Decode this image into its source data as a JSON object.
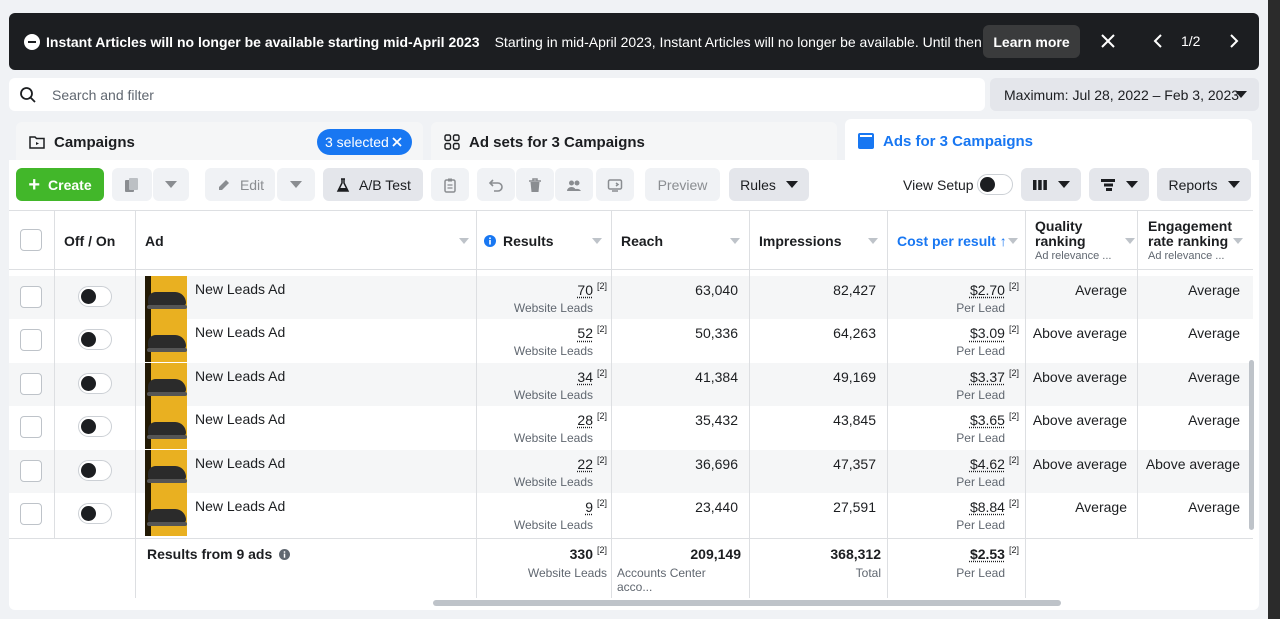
{
  "banner": {
    "title": "Instant Articles will no longer be available starting mid-April 2023",
    "text": "Starting in mid-April 2023, Instant Articles will no longer be available. Until then, you ca...",
    "learn_more": "Learn more",
    "page": "1/2"
  },
  "search": {
    "placeholder": "Search and filter"
  },
  "date_range": "Maximum: Jul 28, 2022 – Feb 3, 2023",
  "tabs": {
    "campaigns": "Campaigns",
    "selected": "3 selected",
    "adsets": "Ad sets for 3 Campaigns",
    "ads": "Ads for 3 Campaigns"
  },
  "toolbar": {
    "create": "Create",
    "edit": "Edit",
    "ab_test": "A/B Test",
    "preview": "Preview",
    "rules": "Rules",
    "view_setup": "View Setup",
    "reports": "Reports"
  },
  "columns": {
    "off_on": "Off / On",
    "ad": "Ad",
    "results": "Results",
    "reach": "Reach",
    "impressions": "Impressions",
    "cost_per_result": "Cost per result ↑",
    "quality_title": "Quality ranking",
    "quality_sub": "Ad relevance ...",
    "engagement_title": "Engagement rate ranking",
    "engagement_sub": "Ad relevance ..."
  },
  "rows": [
    {
      "name": "New Leads Ad",
      "results": "70",
      "results_sub": "Website Leads",
      "reach": "63,040",
      "impressions": "82,427",
      "cost": "$2.70",
      "cost_sub": "Per Lead",
      "quality": "Average",
      "engagement": "Average"
    },
    {
      "name": "New Leads Ad",
      "results": "52",
      "results_sub": "Website Leads",
      "reach": "50,336",
      "impressions": "64,263",
      "cost": "$3.09",
      "cost_sub": "Per Lead",
      "quality": "Above average",
      "engagement": "Average"
    },
    {
      "name": "New Leads Ad",
      "results": "34",
      "results_sub": "Website Leads",
      "reach": "41,384",
      "impressions": "49,169",
      "cost": "$3.37",
      "cost_sub": "Per Lead",
      "quality": "Above average",
      "engagement": "Average"
    },
    {
      "name": "New Leads Ad",
      "results": "28",
      "results_sub": "Website Leads",
      "reach": "35,432",
      "impressions": "43,845",
      "cost": "$3.65",
      "cost_sub": "Per Lead",
      "quality": "Above average",
      "engagement": "Average"
    },
    {
      "name": "New Leads Ad",
      "results": "22",
      "results_sub": "Website Leads",
      "reach": "36,696",
      "impressions": "47,357",
      "cost": "$4.62",
      "cost_sub": "Per Lead",
      "quality": "Above average",
      "engagement": "Above average"
    },
    {
      "name": "New Leads Ad",
      "results": "9",
      "results_sub": "Website Leads",
      "reach": "23,440",
      "impressions": "27,591",
      "cost": "$8.84",
      "cost_sub": "Per Lead",
      "quality": "Average",
      "engagement": "Average"
    }
  ],
  "footer": {
    "label": "Results from 9 ads",
    "results": "330",
    "results_sub": "Website Leads",
    "reach": "209,149",
    "reach_sub": "Accounts Center acco...",
    "impressions": "368,312",
    "impressions_sub": "Total",
    "cost": "$2.53",
    "cost_sub": "Per Lead"
  },
  "sup_mark": "[2]",
  "colors": {
    "accent": "#1877f2",
    "create": "#42b72a",
    "banner": "#1c1e21"
  }
}
